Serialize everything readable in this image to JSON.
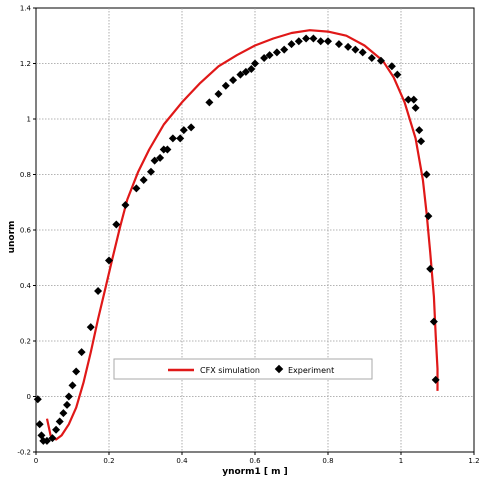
{
  "chart_data": {
    "type": "scatter",
    "xlabel": "ynorm1 [ m ]",
    "ylabel": "unorm",
    "xlim": [
      0,
      1.2
    ],
    "ylim": [
      -0.2,
      1.4
    ],
    "xticks": [
      "0",
      "0.2",
      "0.4",
      "0.6",
      "0.8",
      "1",
      "1.2"
    ],
    "yticks": [
      "-0.2",
      "0",
      "0.2",
      "0.4",
      "0.6",
      "0.8",
      "1",
      "1.2",
      "1.4"
    ],
    "grid": true,
    "legend_placement": "bottom-center",
    "series": [
      {
        "name": "CFX simulation",
        "style": "line",
        "color": "#e01818",
        "points": [
          [
            0.03,
            -0.08
          ],
          [
            0.04,
            -0.14
          ],
          [
            0.055,
            -0.155
          ],
          [
            0.07,
            -0.14
          ],
          [
            0.09,
            -0.1
          ],
          [
            0.11,
            -0.04
          ],
          [
            0.13,
            0.05
          ],
          [
            0.15,
            0.16
          ],
          [
            0.17,
            0.28
          ],
          [
            0.19,
            0.39
          ],
          [
            0.21,
            0.5
          ],
          [
            0.23,
            0.61
          ],
          [
            0.25,
            0.71
          ],
          [
            0.28,
            0.81
          ],
          [
            0.31,
            0.89
          ],
          [
            0.35,
            0.98
          ],
          [
            0.4,
            1.06
          ],
          [
            0.45,
            1.13
          ],
          [
            0.5,
            1.19
          ],
          [
            0.55,
            1.23
          ],
          [
            0.6,
            1.265
          ],
          [
            0.65,
            1.29
          ],
          [
            0.7,
            1.31
          ],
          [
            0.75,
            1.32
          ],
          [
            0.8,
            1.315
          ],
          [
            0.85,
            1.3
          ],
          [
            0.9,
            1.265
          ],
          [
            0.95,
            1.21
          ],
          [
            0.98,
            1.15
          ],
          [
            1.01,
            1.06
          ],
          [
            1.04,
            0.93
          ],
          [
            1.06,
            0.78
          ],
          [
            1.07,
            0.66
          ],
          [
            1.08,
            0.52
          ],
          [
            1.09,
            0.36
          ],
          [
            1.095,
            0.22
          ],
          [
            1.1,
            0.1
          ],
          [
            1.1,
            0.02
          ]
        ]
      },
      {
        "name": "Experiment",
        "style": "diamond",
        "color": "#000000",
        "points": [
          [
            0.005,
            -0.01
          ],
          [
            0.01,
            -0.1
          ],
          [
            0.015,
            -0.14
          ],
          [
            0.02,
            -0.16
          ],
          [
            0.03,
            -0.16
          ],
          [
            0.045,
            -0.15
          ],
          [
            0.055,
            -0.12
          ],
          [
            0.065,
            -0.09
          ],
          [
            0.075,
            -0.06
          ],
          [
            0.085,
            -0.03
          ],
          [
            0.09,
            0.0
          ],
          [
            0.1,
            0.04
          ],
          [
            0.11,
            0.09
          ],
          [
            0.125,
            0.16
          ],
          [
            0.15,
            0.25
          ],
          [
            0.17,
            0.38
          ],
          [
            0.2,
            0.49
          ],
          [
            0.22,
            0.62
          ],
          [
            0.245,
            0.69
          ],
          [
            0.275,
            0.75
          ],
          [
            0.295,
            0.78
          ],
          [
            0.315,
            0.81
          ],
          [
            0.325,
            0.85
          ],
          [
            0.34,
            0.86
          ],
          [
            0.35,
            0.89
          ],
          [
            0.36,
            0.89
          ],
          [
            0.375,
            0.93
          ],
          [
            0.395,
            0.93
          ],
          [
            0.405,
            0.96
          ],
          [
            0.425,
            0.97
          ],
          [
            0.475,
            1.06
          ],
          [
            0.5,
            1.09
          ],
          [
            0.52,
            1.12
          ],
          [
            0.54,
            1.14
          ],
          [
            0.56,
            1.16
          ],
          [
            0.575,
            1.17
          ],
          [
            0.59,
            1.18
          ],
          [
            0.6,
            1.2
          ],
          [
            0.625,
            1.22
          ],
          [
            0.64,
            1.23
          ],
          [
            0.66,
            1.24
          ],
          [
            0.68,
            1.25
          ],
          [
            0.7,
            1.27
          ],
          [
            0.72,
            1.28
          ],
          [
            0.74,
            1.29
          ],
          [
            0.76,
            1.29
          ],
          [
            0.78,
            1.28
          ],
          [
            0.8,
            1.28
          ],
          [
            0.83,
            1.27
          ],
          [
            0.855,
            1.26
          ],
          [
            0.875,
            1.25
          ],
          [
            0.895,
            1.24
          ],
          [
            0.92,
            1.22
          ],
          [
            0.945,
            1.21
          ],
          [
            0.975,
            1.19
          ],
          [
            0.99,
            1.16
          ],
          [
            1.02,
            1.07
          ],
          [
            1.035,
            1.07
          ],
          [
            1.04,
            1.04
          ],
          [
            1.05,
            0.96
          ],
          [
            1.055,
            0.92
          ],
          [
            1.07,
            0.8
          ],
          [
            1.075,
            0.65
          ],
          [
            1.08,
            0.46
          ],
          [
            1.09,
            0.27
          ],
          [
            1.095,
            0.06
          ]
        ]
      }
    ]
  }
}
